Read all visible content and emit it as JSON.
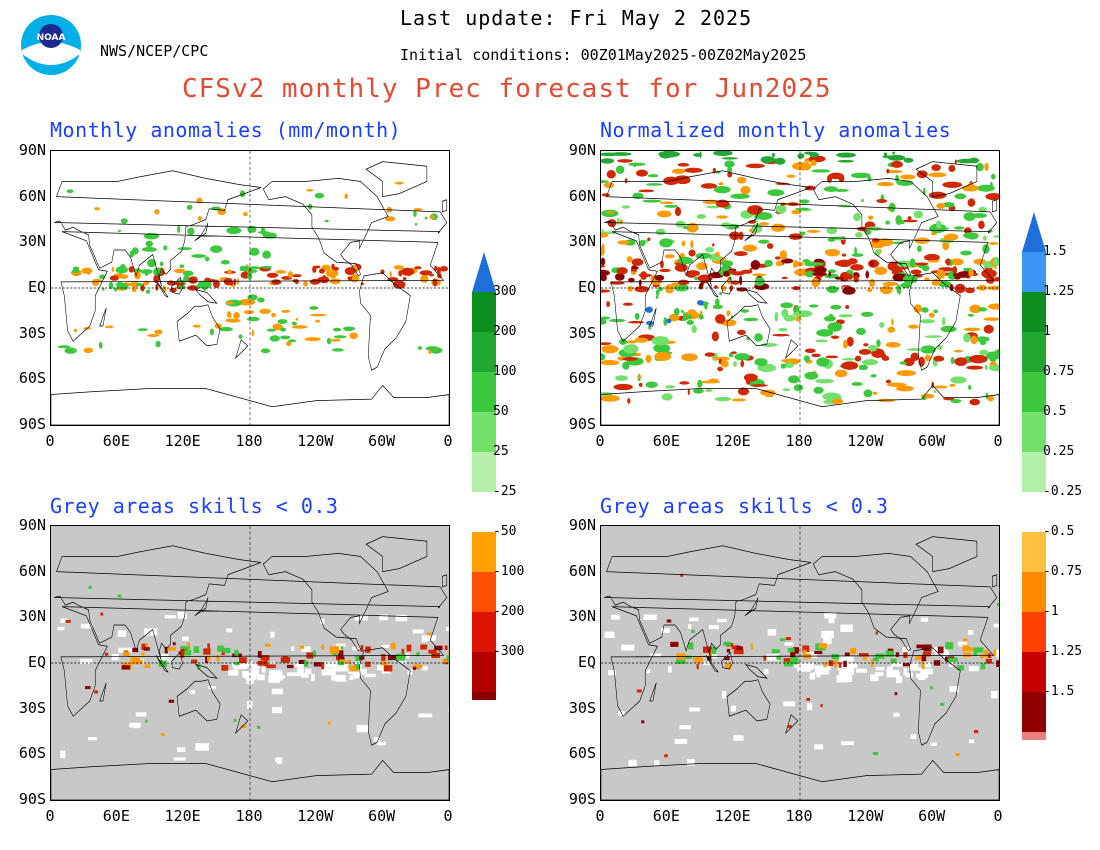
{
  "header": {
    "last_update": "Last update: Fri May 2 2025",
    "agency": "NWS/NCEP/CPC",
    "initial_conditions": "Initial conditions: 00Z01May2025-00Z02May2025",
    "title": "CFSv2 monthly Prec forecast for Jun2025",
    "title_color": "#e34a33",
    "panel_title_color": "#1a40ff"
  },
  "axes": {
    "lat_labels": [
      "90N",
      "60N",
      "30N",
      "EQ",
      "30S",
      "60S",
      "90S"
    ],
    "lon_labels": [
      "0",
      "60E",
      "120E",
      "180",
      "120W",
      "60W",
      "0"
    ]
  },
  "panels": [
    {
      "id": "anomaly",
      "title": "Monthly anomalies (mm/month)",
      "skill_mask": false,
      "field": "raw"
    },
    {
      "id": "normalized",
      "title": "Normalized monthly anomalies",
      "skill_mask": false,
      "field": "norm"
    },
    {
      "id": "anomaly-masked",
      "title": "Grey areas skills < 0.3",
      "skill_mask": true,
      "field": "raw"
    },
    {
      "id": "normalized-masked",
      "title": "Grey areas skills < 0.3",
      "skill_mask": true,
      "field": "norm"
    }
  ],
  "colorbars": {
    "anomaly": {
      "labels_upper": [
        "300",
        "200",
        "100",
        "50",
        "25"
      ],
      "labels_lower": [
        "-25",
        "-50",
        "-100",
        "-200",
        "-300"
      ],
      "colors_upper": [
        "#1e6fd9",
        "#0c8f1e",
        "#20a830",
        "#3cc83c",
        "#74e06c",
        "#b4f0a8"
      ],
      "colors_lower": [
        "#ffa000",
        "#ff5000",
        "#dd1400",
        "#b40000",
        "#8a0000",
        "#6a3a28"
      ]
    },
    "normalized": {
      "labels_upper": [
        "1.5",
        "1.25",
        "1",
        "0.75",
        "0.5",
        "0.25"
      ],
      "labels_lower": [
        "-0.25",
        "-0.5",
        "-0.75",
        "-1",
        "-1.25",
        "-1.5"
      ],
      "colors_upper": [
        "#1e6fd9",
        "#3a96f0",
        "#0c8f1e",
        "#20a830",
        "#3cc83c",
        "#74e06c",
        "#b4f0a8"
      ],
      "colors_lower": [
        "#ffc040",
        "#ff8a00",
        "#ff4000",
        "#c80000",
        "#900000",
        "#e88080",
        "#6a3a28"
      ]
    }
  },
  "legend_colors": {
    "land_outline": "#000000",
    "skill_mask_grey": "#c8c8c8",
    "dry_orange": "#ff9a00",
    "dry_red": "#d22800",
    "wet_green": "#3cc83c",
    "wet_blue": "#1e6fd9"
  }
}
